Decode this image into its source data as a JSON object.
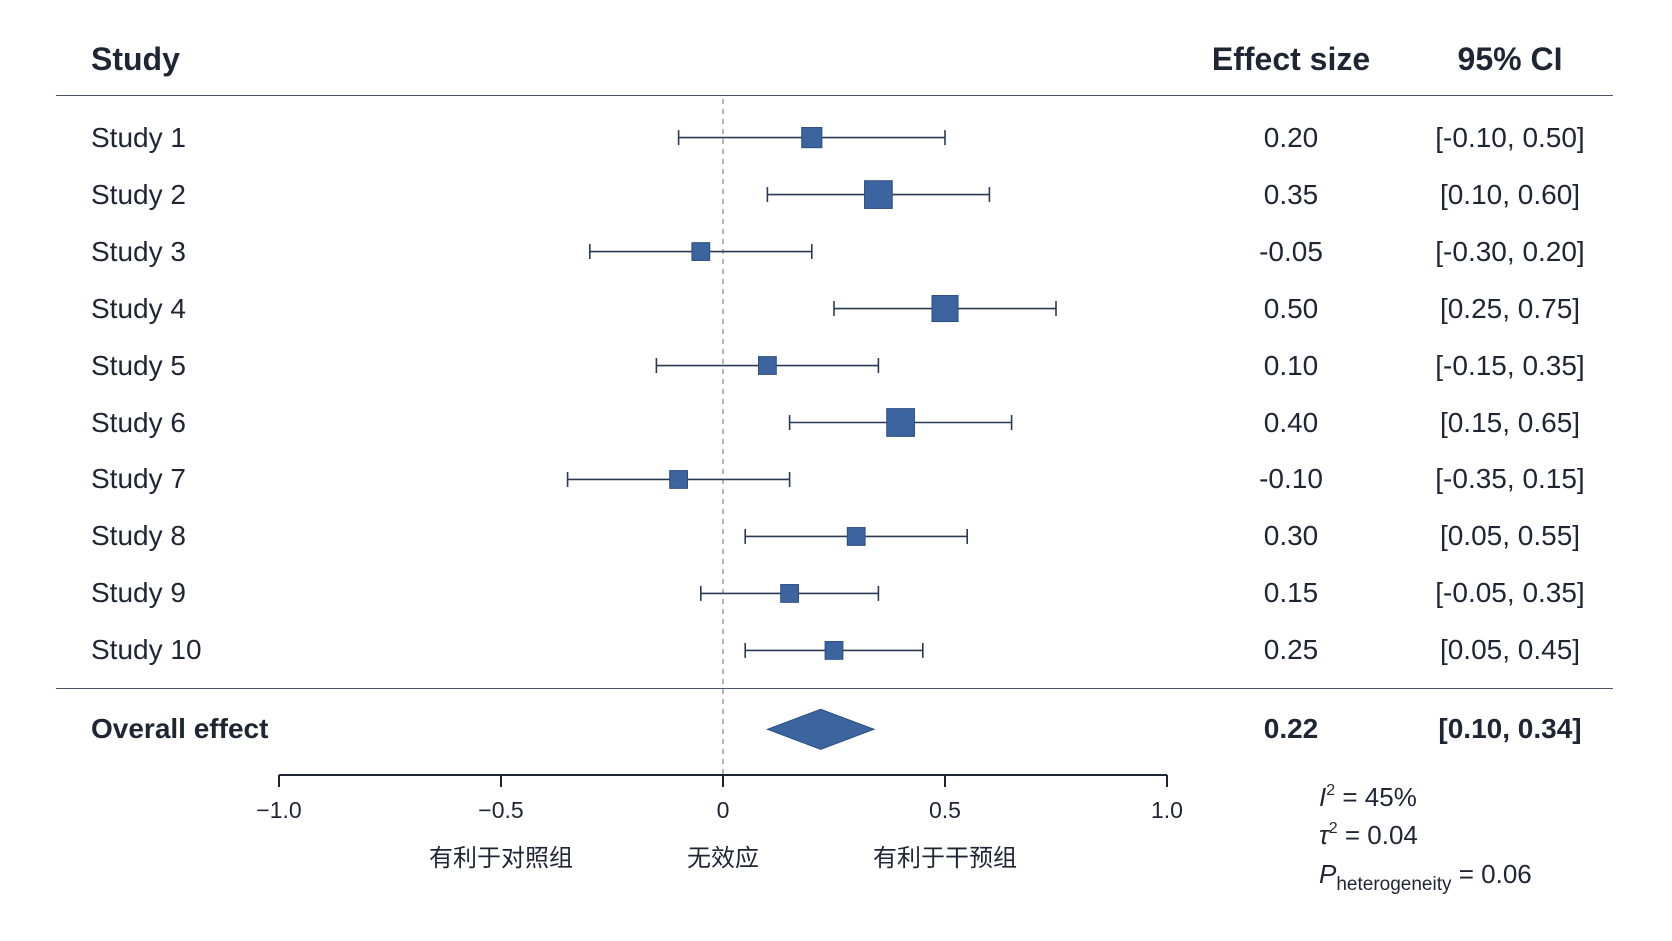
{
  "colors": {
    "text": "#1f2633",
    "rule": "#4a5668",
    "marker": "#3c649f",
    "marker_edge": "#2b4d80",
    "ci_line": "#2a3a55",
    "axis": "#1f2633",
    "reference": "#9e9e9e"
  },
  "chart_data": {
    "type": "scatter",
    "columns": {
      "study": "Study",
      "effect": "Effect size",
      "ci": "95% CI"
    },
    "xlim": [
      -1.0,
      1.0
    ],
    "xticks": [
      -1.0,
      -0.5,
      0,
      0.5,
      1.0
    ],
    "xtick_labels": [
      "−1.0",
      "−0.5",
      "0",
      "0.5",
      "1.0"
    ],
    "reference_line": 0,
    "grid": false,
    "studies": [
      {
        "label": "Study 1",
        "effect": 0.2,
        "ci": [
          -0.1,
          0.5
        ],
        "effect_text": "0.20",
        "ci_text": "[-0.10, 0.50]",
        "weight": 9
      },
      {
        "label": "Study 2",
        "effect": 0.35,
        "ci": [
          0.1,
          0.6
        ],
        "effect_text": "0.35",
        "ci_text": "[0.10, 0.60]",
        "weight": 17
      },
      {
        "label": "Study 3",
        "effect": -0.05,
        "ci": [
          -0.3,
          0.2
        ],
        "effect_text": "-0.05",
        "ci_text": "[-0.30, 0.20]",
        "weight": 7
      },
      {
        "label": "Study 4",
        "effect": 0.5,
        "ci": [
          0.25,
          0.75
        ],
        "effect_text": "0.50",
        "ci_text": "[0.25, 0.75]",
        "weight": 15
      },
      {
        "label": "Study 5",
        "effect": 0.1,
        "ci": [
          -0.15,
          0.35
        ],
        "effect_text": "0.10",
        "ci_text": "[-0.15, 0.35]",
        "weight": 7
      },
      {
        "label": "Study 6",
        "effect": 0.4,
        "ci": [
          0.15,
          0.65
        ],
        "effect_text": "0.40",
        "ci_text": "[0.15, 0.65]",
        "weight": 17
      },
      {
        "label": "Study 7",
        "effect": -0.1,
        "ci": [
          -0.35,
          0.15
        ],
        "effect_text": "-0.10",
        "ci_text": "[-0.35, 0.15]",
        "weight": 7
      },
      {
        "label": "Study 8",
        "effect": 0.3,
        "ci": [
          0.05,
          0.55
        ],
        "effect_text": "0.30",
        "ci_text": "[0.05, 0.55]",
        "weight": 7
      },
      {
        "label": "Study 9",
        "effect": 0.15,
        "ci": [
          -0.05,
          0.35
        ],
        "effect_text": "0.15",
        "ci_text": "[-0.05, 0.35]",
        "weight": 7
      },
      {
        "label": "Study 10",
        "effect": 0.25,
        "ci": [
          0.05,
          0.45
        ],
        "effect_text": "0.25",
        "ci_text": "[0.05, 0.45]",
        "weight": 7
      }
    ],
    "overall": {
      "label": "Overall effect",
      "effect": 0.22,
      "ci": [
        0.1,
        0.34
      ],
      "effect_text": "0.22",
      "ci_text": "[0.10, 0.34]"
    },
    "direction_labels": {
      "favours_control": "有利于对照组",
      "no_effect": "无效应",
      "favours_intervention": "有利于干预组"
    },
    "heterogeneity": [
      {
        "symbol": "I",
        "sup": "2",
        "value": " = 45%"
      },
      {
        "symbol": "τ",
        "sup": "2",
        "value": " = 0.04"
      },
      {
        "symbol": "P",
        "sub": "heterogeneity",
        "value": " = 0.06"
      }
    ]
  }
}
